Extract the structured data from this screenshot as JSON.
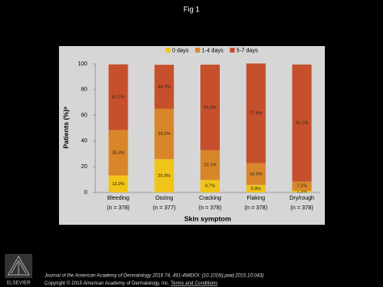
{
  "header": {
    "title": "Fig 1"
  },
  "chart_data": {
    "type": "stacked-bar",
    "ylabel": "Patients (%)ᵃ",
    "xlabel": "Skin symptom",
    "categories": [
      "Bleeding",
      "Oozing",
      "Cracking",
      "Flaking",
      "Dry/rough"
    ],
    "category_notes": [
      "(n = 378)",
      "(n = 377)",
      "(n = 378)",
      "(n = 378)",
      "(n = 378)"
    ],
    "series": [
      {
        "name": "0 days",
        "color": "#f0c419",
        "values": [
          13.2,
          25.9,
          9.7,
          5.8,
          1.3
        ],
        "value_labels": [
          "13.2%",
          "25.9%",
          "9.7%",
          "5.8%",
          "1.3%"
        ]
      },
      {
        "name": "1-4 days",
        "color": "#d9862a",
        "values": [
          35.3,
          39.2,
          23.1,
          16.9,
          7.1
        ],
        "value_labels": [
          "35.3%",
          "39.2%",
          "23.1%",
          "16.9%",
          "7.1%"
        ]
      },
      {
        "name": "5-7 days",
        "color": "#c6502b",
        "values": [
          51.1,
          34.2,
          66.6,
          77.6,
          91.1
        ],
        "value_labels": [
          "51.1%",
          "34.2%",
          "66.6%",
          "77.6%",
          "91.1%"
        ]
      }
    ],
    "ylim": [
      0,
      100
    ],
    "yticks": [
      0,
      20,
      40,
      60,
      80,
      100
    ],
    "legend": "top"
  },
  "footer": {
    "citation": "Journal of the American Academy of Dermatology 2016 74, 491-498DOI: (10.1016/j.jaad.2015.10.043)",
    "copyright": "Copyright © 2015 American Academy of Dermatology, Inc.",
    "link": "Terms and Conditions",
    "publisher": "ELSEVIER"
  }
}
